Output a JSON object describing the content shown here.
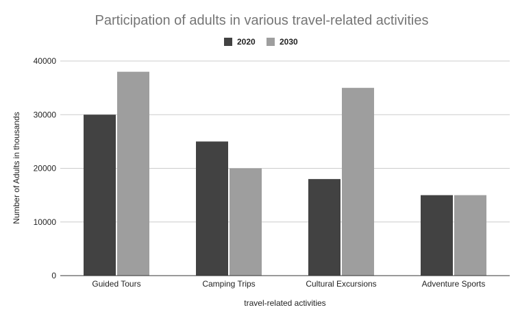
{
  "chart_data": {
    "type": "bar",
    "title": "Participation of adults in various travel-related activities",
    "xlabel": "travel-related activities",
    "ylabel": "Number of Adults in thousands",
    "categories": [
      "Guided Tours",
      "Camping Trips",
      "Cultural Excursions",
      "Adventure Sports"
    ],
    "series": [
      {
        "name": "2020",
        "values": [
          30000,
          25000,
          18000,
          15000
        ],
        "color": "#424242"
      },
      {
        "name": "2030",
        "values": [
          38000,
          20000,
          35000,
          15000
        ],
        "color": "#9e9e9e"
      }
    ],
    "ylim": [
      0,
      40000
    ],
    "yticks": [
      "0",
      "10000",
      "20000",
      "30000",
      "40000"
    ],
    "grid": true,
    "legend_position": "top"
  }
}
